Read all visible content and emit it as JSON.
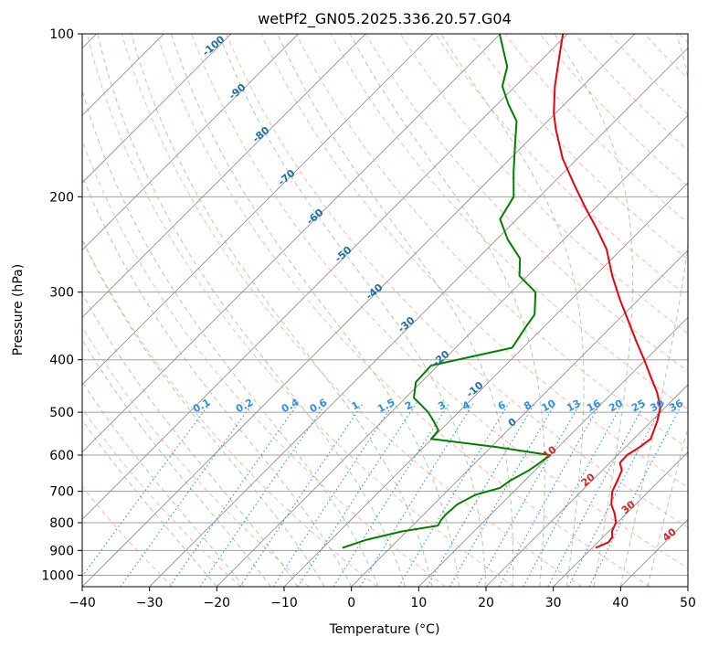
{
  "chart_data": {
    "type": "line",
    "title": "wetPf2_GN05.2025.336.20.57.G04",
    "xlabel": "Temperature (°C)",
    "ylabel": "Pressure (hPa)",
    "xlim": [
      -40,
      50
    ],
    "ylim": [
      1050,
      100
    ],
    "y_scale": "log",
    "x_ticks": [
      -40,
      -30,
      -20,
      -10,
      0,
      10,
      20,
      30,
      40,
      50
    ],
    "x_tick_labels": [
      "−40",
      "−30",
      "−20",
      "−10",
      "0",
      "10",
      "20",
      "30",
      "40",
      "50"
    ],
    "y_ticks": [
      100,
      200,
      300,
      400,
      500,
      600,
      700,
      800,
      900,
      1000
    ],
    "y_tick_labels": [
      "100",
      "200",
      "300",
      "400",
      "500",
      "600",
      "700",
      "800",
      "900",
      "1000"
    ],
    "grid": true,
    "colors": {
      "temperature": "#e8000b",
      "dewpoint": "#008000",
      "dry_adiabat": "#ff9a7a",
      "moist_adiabat": "#7fbf7f",
      "mixing_ratio": "#2e8fe6",
      "skew_isotherm": "#888888",
      "isobar": "#a0a0a0"
    },
    "series": [
      {
        "key": "temperature",
        "p": [
          890,
          870,
          850,
          830,
          800,
          770,
          740,
          700,
          670,
          640,
          620,
          600,
          580,
          560,
          520,
          490,
          460,
          430,
          400,
          370,
          340,
          310,
          280,
          250,
          230,
          210,
          190,
          170,
          150,
          140,
          125,
          110,
          100
        ],
        "t": [
          30.5,
          31.6,
          31.4,
          30.5,
          29.8,
          28.3,
          26.4,
          24.6,
          23.8,
          22.9,
          21.5,
          21.4,
          22.1,
          22.5,
          20.9,
          19.3,
          16.6,
          13.3,
          9.8,
          5.9,
          1.8,
          -2.7,
          -7.4,
          -12.2,
          -16.5,
          -21.4,
          -26.6,
          -32.2,
          -37.6,
          -40.3,
          -44.1,
          -47.9,
          -50.7
        ]
      },
      {
        "key": "dewpoint",
        "p": [
          890,
          860,
          830,
          810,
          790,
          770,
          740,
          710,
          690,
          670,
          640,
          620,
          600,
          580,
          560,
          540,
          520,
          500,
          470,
          440,
          410,
          380,
          350,
          330,
          300,
          280,
          260,
          240,
          220,
          200,
          180,
          160,
          145,
          135,
          125,
          115,
          100
        ],
        "t": [
          -7.1,
          -4.7,
          -0.7,
          3.8,
          3.4,
          3.3,
          3.5,
          4.8,
          7.4,
          7.8,
          9.1,
          9.6,
          9.9,
          0.9,
          -10.1,
          -10.3,
          -12.3,
          -14.5,
          -18.8,
          -20.8,
          -21.0,
          -11.6,
          -12.6,
          -13.2,
          -16.4,
          -21.2,
          -23.7,
          -28.3,
          -32.5,
          -33.8,
          -37.5,
          -41.4,
          -44.6,
          -48.3,
          -51.9,
          -54.1,
          -60.1
        ]
      }
    ],
    "mixing_ratio_labels": [
      "0.1",
      "0.2",
      "0.4",
      "0.6",
      "1",
      "1.5",
      "2",
      "3",
      "4",
      "6",
      "8",
      "10",
      "13",
      "16",
      "20",
      "25",
      "30",
      "36"
    ],
    "dry_adiabat_labels": [
      "-100",
      "-90",
      "-80",
      "-70",
      "-60",
      "-50",
      "-40",
      "-30",
      "-20",
      "-10",
      "0"
    ],
    "moist_adiabat_labels": [
      "10",
      "20",
      "30",
      "40"
    ]
  }
}
